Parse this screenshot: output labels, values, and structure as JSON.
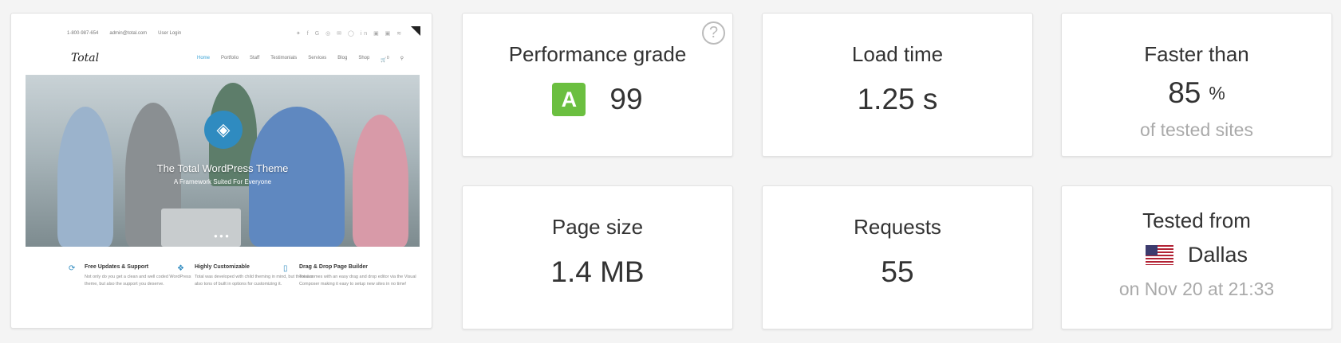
{
  "thumbnail": {
    "topbar": {
      "phone": "1-800-987-654",
      "email": "admin@total.com",
      "login": "User Login"
    },
    "logo": "Total",
    "nav": [
      "Home",
      "Portfolio",
      "Staff",
      "Testimonials",
      "Services",
      "Blog",
      "Shop"
    ],
    "cart_count": "0",
    "hero_title": "The Total WordPress Theme",
    "hero_subtitle": "A Framework Suited For Everyone",
    "features": [
      {
        "title": "Free Updates & Support",
        "text": "Not only do you get a clean and well coded WordPress theme, but also the support you deserve."
      },
      {
        "title": "Highly Customizable",
        "text": "Total was developed with child theming in mind, but there are also tons of built in options for customizing it."
      },
      {
        "title": "Drag & Drop Page Builder",
        "text": "Total comes with an easy drag and drop editor via the Visual Composer making it easy to setup new sites in no time!"
      }
    ]
  },
  "metrics": {
    "performance": {
      "label": "Performance grade",
      "grade": "A",
      "score": "99",
      "help": "?",
      "grade_color": "#6bbf40"
    },
    "load_time": {
      "label": "Load time",
      "value": "1.25 s"
    },
    "faster_than": {
      "label": "Faster than",
      "value": "85",
      "unit": "%",
      "sub": "of tested sites"
    },
    "page_size": {
      "label": "Page size",
      "value": "1.4 MB"
    },
    "requests": {
      "label": "Requests",
      "value": "55"
    },
    "tested_from": {
      "label": "Tested from",
      "location": "Dallas",
      "flag": "us-flag-icon",
      "sub": "on Nov 20 at 21:33"
    }
  }
}
